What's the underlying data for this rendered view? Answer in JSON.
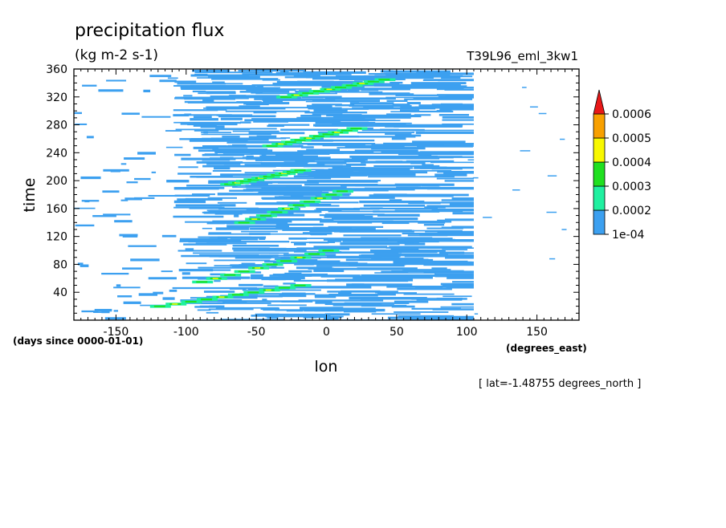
{
  "chart_data": {
    "type": "heatmap",
    "title": "precipitation flux",
    "units": "(kg m-2 s-1)",
    "run_name": "T39L96_eml_3kw1",
    "xlabel": "lon",
    "ylabel": "time",
    "x_units": "(degrees_east)",
    "y_units": "(days since 0000-01-01)",
    "footnote": "[ lat=-1.48755 degrees_north ]",
    "xlim": [
      -180,
      180
    ],
    "ylim": [
      0,
      360
    ],
    "x_ticks": [
      -150,
      -100,
      -50,
      0,
      50,
      100,
      150
    ],
    "y_ticks": [
      40,
      80,
      120,
      160,
      200,
      240,
      280,
      320,
      360
    ],
    "colorbar": {
      "labels": [
        "1e-04",
        "0.0002",
        "0.0003",
        "0.0004",
        "0.0005",
        "0.0006"
      ],
      "levels": [
        0.0001,
        0.0002,
        0.0003,
        0.0004,
        0.0005,
        0.0006
      ],
      "colors": [
        "#3ca0f0",
        "#20f0a0",
        "#20e020",
        "#f8f800",
        "#f8a000",
        "#e81818"
      ],
      "extend": "max"
    },
    "features": {
      "main_band_lon": [
        -100,
        90
      ],
      "main_band_level": 0.0001,
      "eastward_propagating_streaks": [
        {
          "lon_start": -120,
          "lon_end": -20,
          "day_start": 20,
          "day_end": 50
        },
        {
          "lon_start": -90,
          "lon_end": 0,
          "day_start": 55,
          "day_end": 100
        },
        {
          "lon_start": -60,
          "lon_end": 10,
          "day_start": 140,
          "day_end": 185
        },
        {
          "lon_start": -70,
          "lon_end": -20,
          "day_start": 195,
          "day_end": 215
        },
        {
          "lon_start": -40,
          "lon_end": 20,
          "day_start": 250,
          "day_end": 275
        },
        {
          "lon_start": -30,
          "lon_end": 40,
          "day_start": 320,
          "day_end": 345
        }
      ]
    }
  }
}
